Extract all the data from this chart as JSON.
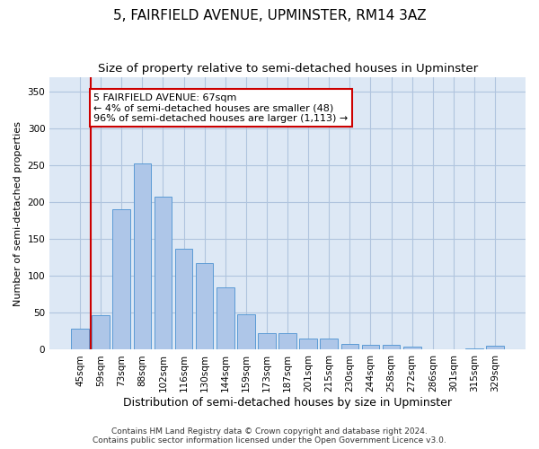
{
  "title1": "5, FAIRFIELD AVENUE, UPMINSTER, RM14 3AZ",
  "title2": "Size of property relative to semi-detached houses in Upminster",
  "xlabel": "Distribution of semi-detached houses by size in Upminster",
  "ylabel": "Number of semi-detached properties",
  "categories": [
    "45sqm",
    "59sqm",
    "73sqm",
    "88sqm",
    "102sqm",
    "116sqm",
    "130sqm",
    "144sqm",
    "159sqm",
    "173sqm",
    "187sqm",
    "201sqm",
    "215sqm",
    "230sqm",
    "244sqm",
    "258sqm",
    "272sqm",
    "286sqm",
    "301sqm",
    "315sqm",
    "329sqm"
  ],
  "values": [
    29,
    47,
    191,
    253,
    207,
    137,
    117,
    85,
    48,
    23,
    23,
    15,
    15,
    8,
    7,
    7,
    4,
    1,
    1,
    2,
    5
  ],
  "bar_color": "#aec6e8",
  "bar_edge_color": "#5b9bd5",
  "annotation_line1": "5 FAIRFIELD AVENUE: 67sqm",
  "annotation_line2": "← 4% of semi-detached houses are smaller (48)",
  "annotation_line3": "96% of semi-detached houses are larger (1,113) →",
  "vline_color": "#cc0000",
  "box_edge_color": "#cc0000",
  "box_bg_color": "#ffffff",
  "ylim": [
    0,
    370
  ],
  "yticks": [
    0,
    50,
    100,
    150,
    200,
    250,
    300,
    350
  ],
  "footnote1": "Contains HM Land Registry data © Crown copyright and database right 2024.",
  "footnote2": "Contains public sector information licensed under the Open Government Licence v3.0.",
  "bg_color": "#ffffff",
  "ax_bg_color": "#dde8f5",
  "grid_color": "#b0c4de",
  "title1_fontsize": 11,
  "title2_fontsize": 9.5,
  "xlabel_fontsize": 9,
  "ylabel_fontsize": 8,
  "tick_fontsize": 7.5,
  "footnote_fontsize": 6.5,
  "annotation_fontsize": 8
}
